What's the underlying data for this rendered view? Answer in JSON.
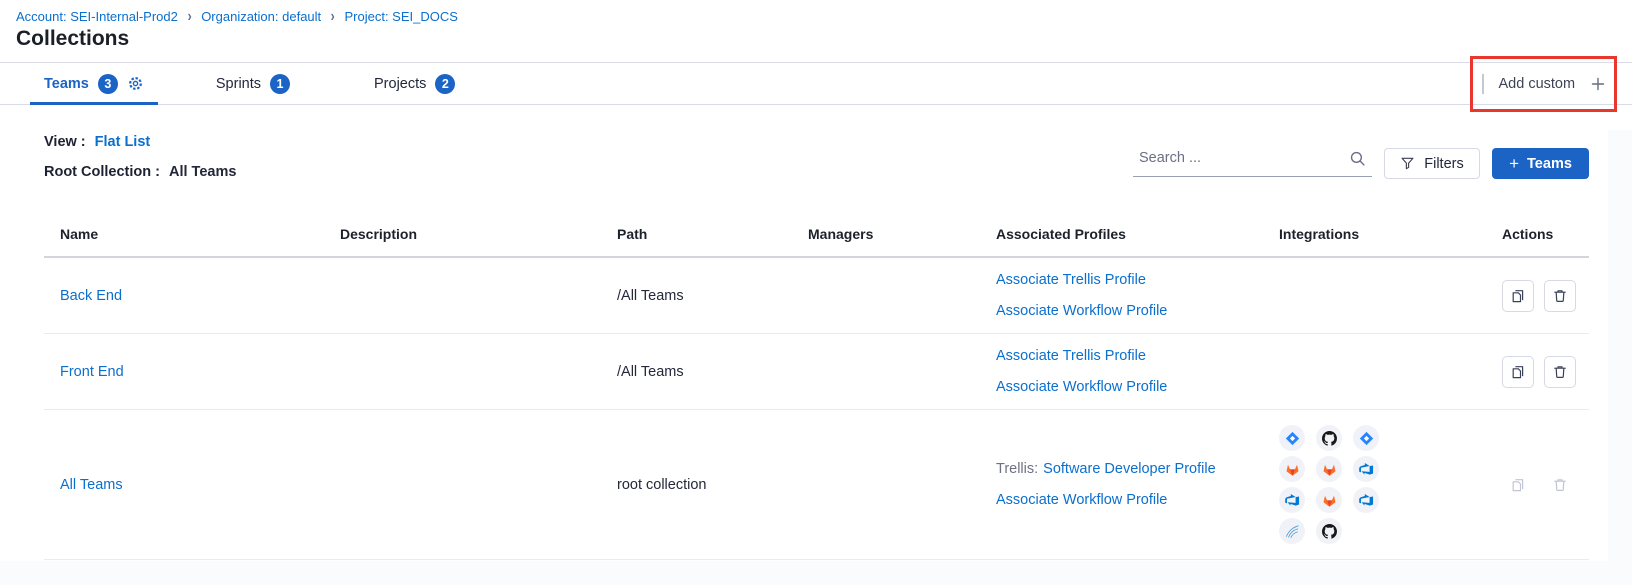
{
  "breadcrumb": {
    "separator": "›",
    "items": [
      {
        "label": "Account: SEI-Internal-Prod2"
      },
      {
        "label": "Organization: default"
      },
      {
        "label": "Project: SEI_DOCS"
      }
    ]
  },
  "page": {
    "title": "Collections"
  },
  "tabbar": {
    "tabs": [
      {
        "label": "Teams",
        "count": "3"
      },
      {
        "label": "Sprints",
        "count": "1"
      },
      {
        "label": "Projects",
        "count": "2"
      }
    ],
    "add_custom_label": "Add custom"
  },
  "toolbar": {
    "view_label": "View :",
    "view_value": "Flat List",
    "root_label": "Root Collection :",
    "root_value": "All Teams",
    "search_placeholder": "Search ...",
    "filters_label": "Filters",
    "teams_button_label": "Teams"
  },
  "table": {
    "columns": [
      "Name",
      "Description",
      "Path",
      "Managers",
      "Associated Profiles",
      "Integrations",
      "Actions"
    ],
    "rows": [
      {
        "name": "Back End",
        "description": "",
        "path": "/All Teams",
        "managers": "",
        "profiles": [
          {
            "prefix": "",
            "link": "Associate Trellis Profile"
          },
          {
            "prefix": "",
            "link": "Associate Workflow Profile"
          }
        ],
        "integrations": [],
        "actions_disabled": false
      },
      {
        "name": "Front End",
        "description": "",
        "path": "/All Teams",
        "managers": "",
        "profiles": [
          {
            "prefix": "",
            "link": "Associate Trellis Profile"
          },
          {
            "prefix": "",
            "link": "Associate Workflow Profile"
          }
        ],
        "integrations": [],
        "actions_disabled": false
      },
      {
        "name": "All Teams",
        "description": "",
        "path": "root collection",
        "managers": "",
        "profiles": [
          {
            "prefix": "Trellis:",
            "link": "Software Developer Profile"
          },
          {
            "prefix": "",
            "link": "Associate Workflow Profile"
          }
        ],
        "integrations": [
          [
            "jira",
            "github",
            "jira"
          ],
          [
            "gitlab",
            "gitlab",
            "azure-devops"
          ],
          [
            "azure-devops",
            "gitlab",
            "azure-devops"
          ],
          [
            "sonarqube",
            "github"
          ]
        ],
        "actions_disabled": true
      }
    ]
  },
  "colors": {
    "primary_blue": "#1b63c5",
    "link_blue": "#0b6fce",
    "annotation_red": "#e8372c"
  }
}
